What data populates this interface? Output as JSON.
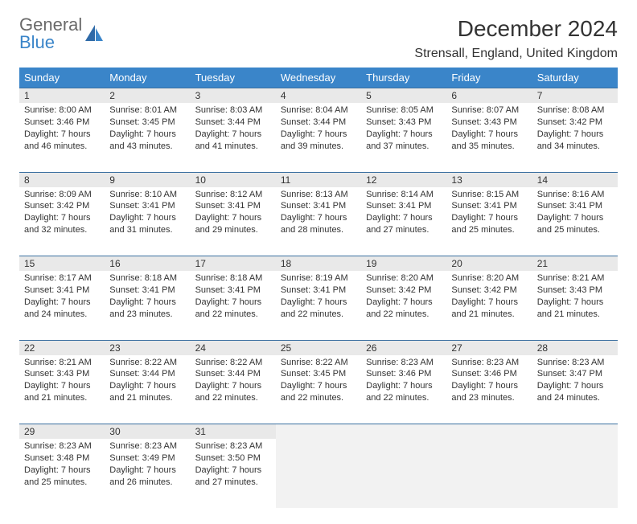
{
  "logo": {
    "line1": "General",
    "line2": "Blue"
  },
  "title": "December 2024",
  "location": "Strensall, England, United Kingdom",
  "colors": {
    "header_bg": "#3a85c9",
    "header_text": "#ffffff",
    "daynum_bg": "#e9e9e9",
    "border": "#3a6fa0",
    "logo_gray": "#6a6a6a",
    "logo_blue": "#3a85c9"
  },
  "weekdays": [
    "Sunday",
    "Monday",
    "Tuesday",
    "Wednesday",
    "Thursday",
    "Friday",
    "Saturday"
  ],
  "weeks": [
    {
      "days": [
        {
          "n": "1",
          "sunrise": "Sunrise: 8:00 AM",
          "sunset": "Sunset: 3:46 PM",
          "day1": "Daylight: 7 hours",
          "day2": "and 46 minutes."
        },
        {
          "n": "2",
          "sunrise": "Sunrise: 8:01 AM",
          "sunset": "Sunset: 3:45 PM",
          "day1": "Daylight: 7 hours",
          "day2": "and 43 minutes."
        },
        {
          "n": "3",
          "sunrise": "Sunrise: 8:03 AM",
          "sunset": "Sunset: 3:44 PM",
          "day1": "Daylight: 7 hours",
          "day2": "and 41 minutes."
        },
        {
          "n": "4",
          "sunrise": "Sunrise: 8:04 AM",
          "sunset": "Sunset: 3:44 PM",
          "day1": "Daylight: 7 hours",
          "day2": "and 39 minutes."
        },
        {
          "n": "5",
          "sunrise": "Sunrise: 8:05 AM",
          "sunset": "Sunset: 3:43 PM",
          "day1": "Daylight: 7 hours",
          "day2": "and 37 minutes."
        },
        {
          "n": "6",
          "sunrise": "Sunrise: 8:07 AM",
          "sunset": "Sunset: 3:43 PM",
          "day1": "Daylight: 7 hours",
          "day2": "and 35 minutes."
        },
        {
          "n": "7",
          "sunrise": "Sunrise: 8:08 AM",
          "sunset": "Sunset: 3:42 PM",
          "day1": "Daylight: 7 hours",
          "day2": "and 34 minutes."
        }
      ]
    },
    {
      "days": [
        {
          "n": "8",
          "sunrise": "Sunrise: 8:09 AM",
          "sunset": "Sunset: 3:42 PM",
          "day1": "Daylight: 7 hours",
          "day2": "and 32 minutes."
        },
        {
          "n": "9",
          "sunrise": "Sunrise: 8:10 AM",
          "sunset": "Sunset: 3:41 PM",
          "day1": "Daylight: 7 hours",
          "day2": "and 31 minutes."
        },
        {
          "n": "10",
          "sunrise": "Sunrise: 8:12 AM",
          "sunset": "Sunset: 3:41 PM",
          "day1": "Daylight: 7 hours",
          "day2": "and 29 minutes."
        },
        {
          "n": "11",
          "sunrise": "Sunrise: 8:13 AM",
          "sunset": "Sunset: 3:41 PM",
          "day1": "Daylight: 7 hours",
          "day2": "and 28 minutes."
        },
        {
          "n": "12",
          "sunrise": "Sunrise: 8:14 AM",
          "sunset": "Sunset: 3:41 PM",
          "day1": "Daylight: 7 hours",
          "day2": "and 27 minutes."
        },
        {
          "n": "13",
          "sunrise": "Sunrise: 8:15 AM",
          "sunset": "Sunset: 3:41 PM",
          "day1": "Daylight: 7 hours",
          "day2": "and 25 minutes."
        },
        {
          "n": "14",
          "sunrise": "Sunrise: 8:16 AM",
          "sunset": "Sunset: 3:41 PM",
          "day1": "Daylight: 7 hours",
          "day2": "and 25 minutes."
        }
      ]
    },
    {
      "days": [
        {
          "n": "15",
          "sunrise": "Sunrise: 8:17 AM",
          "sunset": "Sunset: 3:41 PM",
          "day1": "Daylight: 7 hours",
          "day2": "and 24 minutes."
        },
        {
          "n": "16",
          "sunrise": "Sunrise: 8:18 AM",
          "sunset": "Sunset: 3:41 PM",
          "day1": "Daylight: 7 hours",
          "day2": "and 23 minutes."
        },
        {
          "n": "17",
          "sunrise": "Sunrise: 8:18 AM",
          "sunset": "Sunset: 3:41 PM",
          "day1": "Daylight: 7 hours",
          "day2": "and 22 minutes."
        },
        {
          "n": "18",
          "sunrise": "Sunrise: 8:19 AM",
          "sunset": "Sunset: 3:41 PM",
          "day1": "Daylight: 7 hours",
          "day2": "and 22 minutes."
        },
        {
          "n": "19",
          "sunrise": "Sunrise: 8:20 AM",
          "sunset": "Sunset: 3:42 PM",
          "day1": "Daylight: 7 hours",
          "day2": "and 22 minutes."
        },
        {
          "n": "20",
          "sunrise": "Sunrise: 8:20 AM",
          "sunset": "Sunset: 3:42 PM",
          "day1": "Daylight: 7 hours",
          "day2": "and 21 minutes."
        },
        {
          "n": "21",
          "sunrise": "Sunrise: 8:21 AM",
          "sunset": "Sunset: 3:43 PM",
          "day1": "Daylight: 7 hours",
          "day2": "and 21 minutes."
        }
      ]
    },
    {
      "days": [
        {
          "n": "22",
          "sunrise": "Sunrise: 8:21 AM",
          "sunset": "Sunset: 3:43 PM",
          "day1": "Daylight: 7 hours",
          "day2": "and 21 minutes."
        },
        {
          "n": "23",
          "sunrise": "Sunrise: 8:22 AM",
          "sunset": "Sunset: 3:44 PM",
          "day1": "Daylight: 7 hours",
          "day2": "and 21 minutes."
        },
        {
          "n": "24",
          "sunrise": "Sunrise: 8:22 AM",
          "sunset": "Sunset: 3:44 PM",
          "day1": "Daylight: 7 hours",
          "day2": "and 22 minutes."
        },
        {
          "n": "25",
          "sunrise": "Sunrise: 8:22 AM",
          "sunset": "Sunset: 3:45 PM",
          "day1": "Daylight: 7 hours",
          "day2": "and 22 minutes."
        },
        {
          "n": "26",
          "sunrise": "Sunrise: 8:23 AM",
          "sunset": "Sunset: 3:46 PM",
          "day1": "Daylight: 7 hours",
          "day2": "and 22 minutes."
        },
        {
          "n": "27",
          "sunrise": "Sunrise: 8:23 AM",
          "sunset": "Sunset: 3:46 PM",
          "day1": "Daylight: 7 hours",
          "day2": "and 23 minutes."
        },
        {
          "n": "28",
          "sunrise": "Sunrise: 8:23 AM",
          "sunset": "Sunset: 3:47 PM",
          "day1": "Daylight: 7 hours",
          "day2": "and 24 minutes."
        }
      ]
    },
    {
      "days": [
        {
          "n": "29",
          "sunrise": "Sunrise: 8:23 AM",
          "sunset": "Sunset: 3:48 PM",
          "day1": "Daylight: 7 hours",
          "day2": "and 25 minutes."
        },
        {
          "n": "30",
          "sunrise": "Sunrise: 8:23 AM",
          "sunset": "Sunset: 3:49 PM",
          "day1": "Daylight: 7 hours",
          "day2": "and 26 minutes."
        },
        {
          "n": "31",
          "sunrise": "Sunrise: 8:23 AM",
          "sunset": "Sunset: 3:50 PM",
          "day1": "Daylight: 7 hours",
          "day2": "and 27 minutes."
        },
        null,
        null,
        null,
        null
      ]
    }
  ]
}
